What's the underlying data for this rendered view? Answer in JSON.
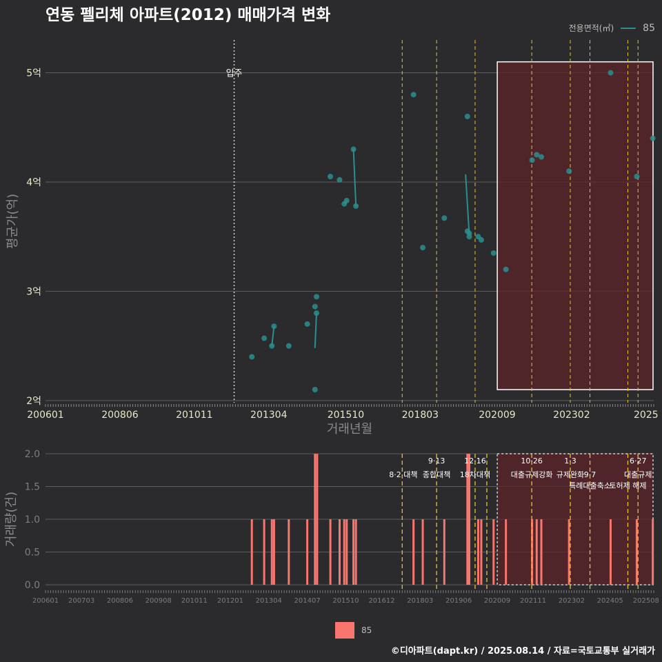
{
  "title": "연동 펠리체 아파트(2012) 매매가격 변화",
  "legend": {
    "title": "전용면적(㎡)",
    "label": "85"
  },
  "footer": "©디아파트(dapt.kr) / 2025.08.14 / 자료=국토교통부 실거래가",
  "colors": {
    "series": "#2a8f8f",
    "bar": "#f8766d",
    "policy": "#e5c52b",
    "highlight": "#5e2428"
  },
  "chart_data": [
    {
      "type": "scatter",
      "title": "연동 펠리체 아파트(2012) 매매가격 변화",
      "xlabel": "거래년월",
      "ylabel": "평균가(억)",
      "xlim": [
        2006.0,
        2025.75
      ],
      "ylim": [
        1.98,
        5.3
      ],
      "x_ticks": [
        {
          "t": 2006.0,
          "label": "200601"
        },
        {
          "t": 2008.417,
          "label": "200806"
        },
        {
          "t": 2010.833,
          "label": "201011"
        },
        {
          "t": 2013.25,
          "label": "201304"
        },
        {
          "t": 2015.75,
          "label": "201510"
        },
        {
          "t": 2018.167,
          "label": "201803"
        },
        {
          "t": 2020.667,
          "label": "202009"
        },
        {
          "t": 2023.083,
          "label": "202302"
        },
        {
          "t": 2025.5,
          "label": "2025"
        }
      ],
      "y_ticks": [
        {
          "v": 2,
          "label": "2억"
        },
        {
          "v": 3,
          "label": "3억"
        },
        {
          "v": 4,
          "label": "4억"
        },
        {
          "v": 5,
          "label": "5억"
        }
      ],
      "move_in": {
        "t": 2012.125,
        "label": "입주"
      },
      "policy_lines": [
        2017.583,
        2018.7,
        2019.95,
        2021.79,
        2023.04,
        2023.68,
        2024.91,
        2025.24
      ],
      "highlight_range": [
        2020.67,
        2025.75
      ],
      "highlight_y": [
        2.1,
        5.1
      ],
      "series": [
        {
          "name": "85",
          "points": [
            [
              2012.7,
              2.4
            ],
            [
              2013.1,
              2.57
            ],
            [
              2013.35,
              2.5
            ],
            [
              2013.42,
              2.68
            ],
            [
              2013.9,
              2.5
            ],
            [
              2014.5,
              2.7
            ],
            [
              2014.75,
              2.86
            ],
            [
              2014.75,
              2.1
            ],
            [
              2014.8,
              2.95
            ],
            [
              2014.8,
              2.8
            ],
            [
              2015.25,
              4.05
            ],
            [
              2015.55,
              4.02
            ],
            [
              2015.7,
              3.8
            ],
            [
              2015.78,
              3.83
            ],
            [
              2016.0,
              4.3
            ],
            [
              2016.08,
              3.78
            ],
            [
              2017.95,
              4.8
            ],
            [
              2018.25,
              3.4
            ],
            [
              2018.95,
              3.67
            ],
            [
              2019.7,
              4.6
            ],
            [
              2019.7,
              3.55
            ],
            [
              2019.76,
              3.53
            ],
            [
              2019.76,
              3.5
            ],
            [
              2020.05,
              3.5
            ],
            [
              2020.15,
              3.47
            ],
            [
              2020.55,
              3.35
            ],
            [
              2020.95,
              3.2
            ],
            [
              2021.8,
              4.2
            ],
            [
              2021.95,
              4.25
            ],
            [
              2022.1,
              4.23
            ],
            [
              2023.0,
              4.1
            ],
            [
              2024.35,
              5.0
            ],
            [
              2025.2,
              4.05
            ],
            [
              2025.72,
              4.4
            ]
          ],
          "connectors": [
            [
              2013.35,
              2.5,
              2013.42,
              2.68
            ],
            [
              2014.75,
              2.48,
              2014.8,
              2.8
            ],
            [
              2015.7,
              3.8,
              2015.78,
              3.83
            ],
            [
              2016.0,
              4.3,
              2016.08,
              3.78
            ],
            [
              2019.64,
              4.07,
              2019.76,
              3.52
            ]
          ]
        }
      ]
    },
    {
      "type": "bar",
      "xlabel": "",
      "ylabel": "거래량(건)",
      "xlim": [
        2006.0,
        2025.75
      ],
      "ylim": [
        0,
        2.0
      ],
      "y_ticks": [
        {
          "v": 0,
          "label": "0.0"
        },
        {
          "v": 0.5,
          "label": "0.5"
        },
        {
          "v": 1.0,
          "label": "1.0"
        },
        {
          "v": 1.5,
          "label": "1.5"
        },
        {
          "v": 2.0,
          "label": "2.0"
        }
      ],
      "x_ticks": [
        {
          "t": 2006.0,
          "label": "200601"
        },
        {
          "t": 2007.167,
          "label": "200703"
        },
        {
          "t": 2008.417,
          "label": "200806"
        },
        {
          "t": 2009.667,
          "label": "200908"
        },
        {
          "t": 2010.833,
          "label": "201011"
        },
        {
          "t": 2012.0,
          "label": "201201"
        },
        {
          "t": 2013.25,
          "label": "201304"
        },
        {
          "t": 2014.5,
          "label": "201407"
        },
        {
          "t": 2015.75,
          "label": "201510"
        },
        {
          "t": 2016.917,
          "label": "201612"
        },
        {
          "t": 2018.167,
          "label": "201803"
        },
        {
          "t": 2019.417,
          "label": "201906"
        },
        {
          "t": 2020.667,
          "label": "202009"
        },
        {
          "t": 2021.833,
          "label": "202111"
        },
        {
          "t": 2023.083,
          "label": "202302"
        },
        {
          "t": 2024.333,
          "label": "202405"
        },
        {
          "t": 2025.5,
          "label": "202508"
        }
      ],
      "policy_lines": [
        2017.583,
        2018.7,
        2019.95,
        2020.33,
        2021.79,
        2023.04,
        2023.68,
        2024.91,
        2025.24
      ],
      "highlight_range": [
        2020.67,
        2025.75
      ],
      "annotations": [
        {
          "t": 2017.62,
          "row": 1,
          "label": "8·2 대책"
        },
        {
          "t": 2018.7,
          "row": 0,
          "label": "9·13"
        },
        {
          "t": 2018.7,
          "row": 1,
          "label": "종합대책"
        },
        {
          "t": 2019.95,
          "row": 0,
          "label": "12·16"
        },
        {
          "t": 2019.95,
          "row": 1,
          "label": "18차대책"
        },
        {
          "t": 2021.79,
          "row": 0,
          "label": "10·26"
        },
        {
          "t": 2021.79,
          "row": 1,
          "label": "대출규제강화"
        },
        {
          "t": 2023.04,
          "row": 0,
          "label": "1·3"
        },
        {
          "t": 2023.04,
          "row": 1,
          "label": "규제완화"
        },
        {
          "t": 2023.68,
          "row": 1,
          "label": "9·7"
        },
        {
          "t": 2023.68,
          "row": 2,
          "label": "특례대출축소"
        },
        {
          "t": 2024.91,
          "row": 2,
          "label": "토허제 해제"
        },
        {
          "t": 2025.24,
          "row": 0,
          "label": "6·27"
        },
        {
          "t": 2025.24,
          "row": 1,
          "label": "대출규제"
        }
      ],
      "series": [
        {
          "name": "85",
          "values": [
            [
              2012.7,
              1
            ],
            [
              2013.1,
              1
            ],
            [
              2013.35,
              1
            ],
            [
              2013.42,
              1
            ],
            [
              2013.9,
              1
            ],
            [
              2014.5,
              1
            ],
            [
              2014.75,
              2
            ],
            [
              2014.82,
              2
            ],
            [
              2015.25,
              1
            ],
            [
              2015.55,
              1
            ],
            [
              2015.7,
              1
            ],
            [
              2015.78,
              1
            ],
            [
              2016.0,
              1
            ],
            [
              2016.08,
              1
            ],
            [
              2017.95,
              1
            ],
            [
              2018.25,
              1
            ],
            [
              2018.95,
              1
            ],
            [
              2019.7,
              2
            ],
            [
              2019.76,
              2
            ],
            [
              2020.05,
              1
            ],
            [
              2020.15,
              1
            ],
            [
              2020.55,
              1
            ],
            [
              2020.95,
              1
            ],
            [
              2021.8,
              1
            ],
            [
              2021.95,
              1
            ],
            [
              2022.1,
              1
            ],
            [
              2023.0,
              1
            ],
            [
              2024.35,
              1
            ],
            [
              2025.2,
              1
            ],
            [
              2025.72,
              1
            ]
          ]
        }
      ]
    }
  ]
}
